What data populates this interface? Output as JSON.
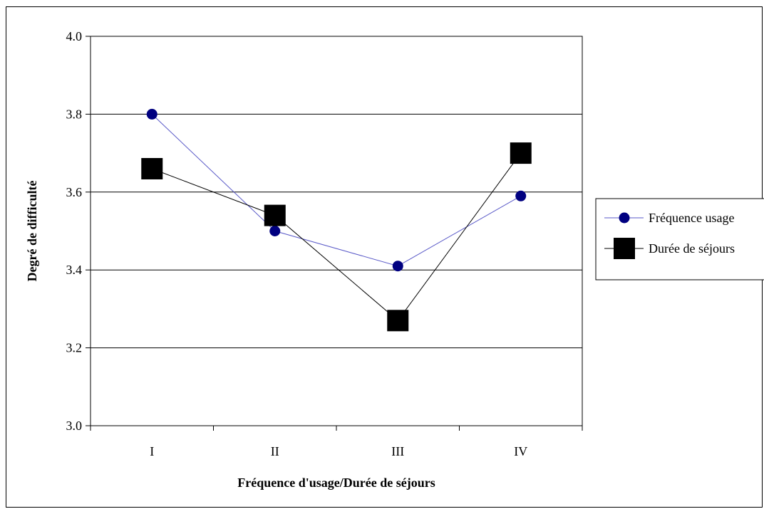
{
  "chart_data": {
    "type": "line",
    "categories": [
      "I",
      "II",
      "III",
      "IV"
    ],
    "series": [
      {
        "name": "Fréquence usage",
        "values": [
          3.8,
          3.5,
          3.41,
          3.59
        ],
        "color": "#000080",
        "marker": "circle",
        "line_color": "#5a5ac8"
      },
      {
        "name": "Durée de séjours",
        "values": [
          3.66,
          3.54,
          3.27,
          3.7
        ],
        "color": "#000000",
        "marker": "square",
        "line_color": "#000000"
      }
    ],
    "xlabel": "Fréquence d'usage/Durée de séjours",
    "ylabel": "Degré de difficulté",
    "ylim": [
      3.0,
      4.0
    ],
    "yticks": [
      "3.0",
      "3.2",
      "3.4",
      "3.6",
      "3.8",
      "4.0"
    ],
    "grid": true,
    "legend_position": "right"
  }
}
